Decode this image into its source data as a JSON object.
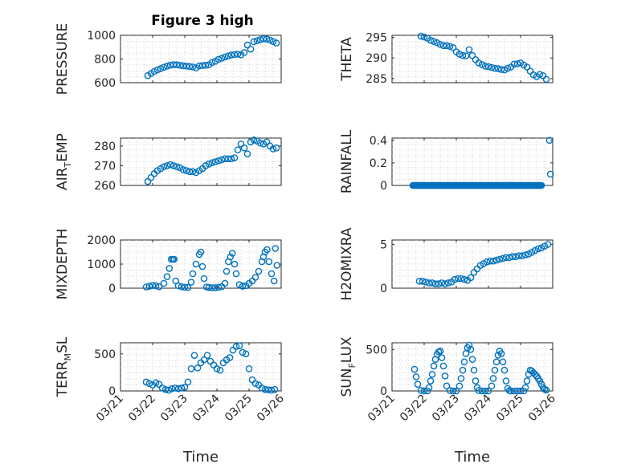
{
  "chart_data": [
    {
      "type": "scatter",
      "title": "Figure 3 high",
      "ylabel": "PRESSURE",
      "ylim": [
        600,
        1000
      ],
      "yticks": [
        "600",
        "800",
        "1000"
      ],
      "marker_color": "#0072BD",
      "x": [
        0.85,
        0.95,
        1.05,
        1.15,
        1.25,
        1.35,
        1.45,
        1.55,
        1.65,
        1.75,
        1.85,
        1.95,
        2.05,
        2.15,
        2.25,
        2.35,
        2.45,
        2.55,
        2.65,
        2.75,
        2.85,
        2.95,
        3.05,
        3.15,
        3.25,
        3.35,
        3.45,
        3.55,
        3.65,
        3.75,
        3.85,
        3.95,
        4.05,
        4.15,
        4.25,
        4.35,
        4.45,
        4.55,
        4.65,
        4.75,
        4.85
      ],
      "y": [
        660,
        678,
        695,
        708,
        718,
        730,
        740,
        748,
        752,
        751,
        747,
        743,
        740,
        737,
        733,
        725,
        742,
        745,
        747,
        752,
        771,
        781,
        797,
        806,
        817,
        826,
        834,
        838,
        841,
        835,
        855,
        918,
        883,
        946,
        955,
        963,
        970,
        968,
        960,
        948,
        935
      ]
    },
    {
      "type": "scatter",
      "ylabel": "THETA",
      "ylim": [
        284,
        295.5
      ],
      "yticks": [
        "285",
        "290",
        "295"
      ],
      "marker_color": "#0072BD",
      "x": [
        0.9,
        1.0,
        1.1,
        1.2,
        1.3,
        1.4,
        1.5,
        1.6,
        1.7,
        1.8,
        1.9,
        2.0,
        2.1,
        2.2,
        2.3,
        2.4,
        2.5,
        2.6,
        2.7,
        2.8,
        2.9,
        3.0,
        3.1,
        3.2,
        3.3,
        3.4,
        3.5,
        3.6,
        3.7,
        3.8,
        3.9,
        4.0,
        4.1,
        4.2,
        4.3,
        4.4,
        4.5,
        4.6,
        4.7,
        4.8
      ],
      "y": [
        295.3,
        295.1,
        294.8,
        294.3,
        294.0,
        293.7,
        293.3,
        293.0,
        293.0,
        292.8,
        292.5,
        291.5,
        290.9,
        290.6,
        290.5,
        292.0,
        290.6,
        289.6,
        288.8,
        288.4,
        288.0,
        287.9,
        287.7,
        287.5,
        287.4,
        287.2,
        287.1,
        287.5,
        287.8,
        288.5,
        288.6,
        288.8,
        288.3,
        287.8,
        286.8,
        285.9,
        285.5,
        286.0,
        285.7,
        284.8
      ]
    },
    {
      "type": "scatter",
      "ylabel": "AIR",
      "ylabel_sub": "T",
      "ylabel_tail": "EMP",
      "ylim": [
        260,
        284
      ],
      "yticks": [
        "260",
        "270",
        "280"
      ],
      "marker_color": "#0072BD",
      "x": [
        0.85,
        0.95,
        1.05,
        1.15,
        1.25,
        1.35,
        1.45,
        1.55,
        1.65,
        1.75,
        1.85,
        1.95,
        2.05,
        2.15,
        2.25,
        2.35,
        2.45,
        2.55,
        2.65,
        2.75,
        2.85,
        2.95,
        3.05,
        3.15,
        3.25,
        3.35,
        3.45,
        3.55,
        3.65,
        3.75,
        3.85,
        3.95,
        4.05,
        4.15,
        4.25,
        4.35,
        4.45,
        4.55,
        4.65,
        4.75,
        4.85
      ],
      "y": [
        262,
        264,
        266,
        267.5,
        268.5,
        269.5,
        270,
        270.5,
        270,
        269.5,
        269,
        268,
        267.5,
        267,
        267,
        266.5,
        267.5,
        268.5,
        270,
        270.8,
        271.5,
        272,
        272.5,
        273,
        273.5,
        273.5,
        273.5,
        274,
        278,
        281,
        279,
        276,
        282,
        283,
        282.5,
        281.5,
        281,
        282,
        280,
        278.5,
        279
      ]
    },
    {
      "type": "scatter",
      "ylabel": "RAINFALL",
      "ylim": [
        0,
        0.42
      ],
      "yticks": [
        "0",
        "0.2",
        "0.4"
      ],
      "marker_color": "#0072BD",
      "baseline_from": 0.65,
      "baseline_to": 4.65,
      "baseline_step": 0.025,
      "extra_x": [
        4.9,
        4.93
      ],
      "extra_y": [
        0.4,
        0.1
      ]
    },
    {
      "type": "scatter",
      "ylabel": "MIXDEPTH",
      "ylim": [
        0,
        2000
      ],
      "yticks": [
        "0",
        "1000",
        "2000"
      ],
      "marker_color": "#0072BD",
      "x": [
        0.8,
        0.9,
        1.0,
        1.1,
        1.2,
        1.35,
        1.45,
        1.52,
        1.58,
        1.63,
        1.67,
        1.72,
        1.8,
        1.9,
        2.0,
        2.1,
        2.2,
        2.25,
        2.35,
        2.45,
        2.5,
        2.55,
        2.6,
        2.68,
        2.75,
        2.85,
        2.95,
        3.05,
        3.15,
        3.25,
        3.3,
        3.36,
        3.42,
        3.48,
        3.55,
        3.6,
        3.7,
        3.8,
        3.9,
        4.0,
        4.1,
        4.2,
        4.3,
        4.4,
        4.45,
        4.5,
        4.56,
        4.62,
        4.7,
        4.78,
        4.82,
        4.87
      ],
      "y": [
        50,
        80,
        110,
        100,
        60,
        200,
        480,
        820,
        1200,
        1200,
        1200,
        300,
        100,
        60,
        40,
        30,
        250,
        600,
        1000,
        1400,
        1500,
        900,
        400,
        50,
        30,
        20,
        20,
        40,
        60,
        200,
        700,
        1100,
        1300,
        1450,
        1000,
        600,
        150,
        80,
        100,
        200,
        300,
        450,
        700,
        1100,
        1300,
        1500,
        1600,
        1100,
        600,
        300,
        1650,
        950
      ]
    },
    {
      "type": "scatter",
      "ylabel": "H2OMIXRA",
      "ylim": [
        0,
        5.5
      ],
      "yticks": [
        "0",
        "5"
      ],
      "marker_color": "#0072BD",
      "x": [
        0.85,
        0.95,
        1.05,
        1.15,
        1.25,
        1.35,
        1.45,
        1.55,
        1.65,
        1.75,
        1.85,
        1.95,
        2.05,
        2.15,
        2.25,
        2.35,
        2.45,
        2.55,
        2.65,
        2.75,
        2.85,
        2.95,
        3.05,
        3.15,
        3.25,
        3.35,
        3.45,
        3.55,
        3.65,
        3.75,
        3.85,
        3.95,
        4.05,
        4.15,
        4.25,
        4.35,
        4.45,
        4.55,
        4.65,
        4.75,
        4.85
      ],
      "y": [
        0.8,
        0.8,
        0.7,
        0.6,
        0.6,
        0.5,
        0.5,
        0.6,
        0.5,
        0.6,
        0.7,
        1.0,
        1.1,
        1.1,
        1.0,
        0.9,
        1.2,
        1.8,
        2.2,
        2.6,
        2.8,
        3.0,
        3.1,
        3.1,
        3.2,
        3.3,
        3.4,
        3.5,
        3.5,
        3.6,
        3.6,
        3.7,
        3.7,
        3.8,
        3.9,
        4.1,
        4.3,
        4.5,
        4.6,
        4.8,
        5.0
      ]
    },
    {
      "type": "scatter",
      "ylabel": "TERR",
      "ylabel_sub": "M",
      "ylabel_tail": "SL",
      "ylim": [
        0,
        650
      ],
      "yticks": [
        "0",
        "500"
      ],
      "xticks": [
        "03/21",
        "03/22",
        "03/23",
        "03/24",
        "03/25",
        "03/26"
      ],
      "xlabel": "Time",
      "marker_color": "#0072BD",
      "x": [
        0.8,
        0.9,
        1.0,
        1.1,
        1.2,
        1.3,
        1.4,
        1.5,
        1.6,
        1.7,
        1.8,
        1.9,
        2.0,
        2.1,
        2.2,
        2.3,
        2.4,
        2.5,
        2.6,
        2.7,
        2.8,
        2.9,
        3.0,
        3.1,
        3.2,
        3.3,
        3.4,
        3.5,
        3.6,
        3.7,
        3.8,
        3.9,
        4.0,
        4.1,
        4.2,
        4.3,
        4.4,
        4.5,
        4.6,
        4.7,
        4.8
      ],
      "y": [
        120,
        100,
        80,
        110,
        90,
        40,
        20,
        10,
        30,
        40,
        30,
        40,
        50,
        120,
        300,
        480,
        310,
        380,
        420,
        480,
        400,
        350,
        300,
        280,
        380,
        420,
        450,
        550,
        600,
        610,
        520,
        500,
        300,
        150,
        100,
        80,
        40,
        20,
        15,
        10,
        20
      ]
    },
    {
      "type": "scatter",
      "ylabel": "SUN",
      "ylabel_sub": "F",
      "ylabel_tail": "LUX",
      "ylim": [
        0,
        580
      ],
      "yticks": [
        "0",
        "500"
      ],
      "xticks": [
        "03/21",
        "03/22",
        "03/23",
        "03/24",
        "03/25",
        "03/26"
      ],
      "xlabel": "Time",
      "marker_color": "#0072BD",
      "x": [
        0.7,
        0.75,
        0.8,
        0.9,
        1.0,
        1.1,
        1.15,
        1.2,
        1.25,
        1.3,
        1.35,
        1.4,
        1.45,
        1.5,
        1.55,
        1.6,
        1.65,
        1.7,
        1.8,
        1.9,
        2.0,
        2.1,
        2.15,
        2.2,
        2.25,
        2.3,
        2.35,
        2.4,
        2.45,
        2.5,
        2.55,
        2.6,
        2.65,
        2.7,
        2.8,
        2.9,
        3.0,
        3.1,
        3.15,
        3.2,
        3.25,
        3.3,
        3.35,
        3.4,
        3.45,
        3.5,
        3.55,
        3.6,
        3.65,
        3.7,
        3.8,
        3.9,
        4.0,
        4.1,
        4.15,
        4.2,
        4.25,
        4.3,
        4.35,
        4.4,
        4.45,
        4.5,
        4.55,
        4.6,
        4.65,
        4.7,
        4.75,
        4.8
      ],
      "y": [
        260,
        170,
        80,
        5,
        0,
        0,
        40,
        120,
        200,
        300,
        380,
        440,
        470,
        480,
        400,
        300,
        180,
        60,
        5,
        0,
        0,
        60,
        150,
        250,
        350,
        450,
        520,
        550,
        500,
        380,
        250,
        120,
        40,
        5,
        0,
        0,
        0,
        60,
        150,
        250,
        350,
        430,
        480,
        450,
        350,
        250,
        120,
        30,
        5,
        0,
        0,
        0,
        0,
        0,
        40,
        120,
        200,
        250,
        240,
        220,
        200,
        180,
        150,
        120,
        80,
        40,
        20,
        10
      ]
    }
  ]
}
